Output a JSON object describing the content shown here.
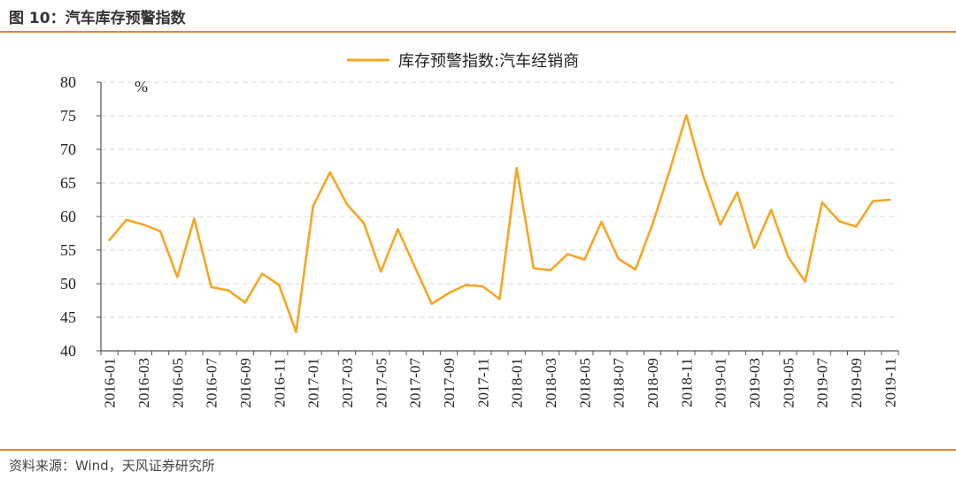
{
  "figure": {
    "title": "图 10：汽车库存预警指数",
    "source": "资料来源：Wind，天风证券研究所"
  },
  "colors": {
    "accent": "#e8822a",
    "line": "#f5a623",
    "grid": "#d9d9d9",
    "axis": "#555555"
  },
  "chart_data": {
    "type": "line",
    "unit_label": "%",
    "ylim": [
      40,
      80
    ],
    "yticks": [
      40,
      45,
      50,
      55,
      60,
      65,
      70,
      75,
      80
    ],
    "grid": true,
    "legend_position": "top-center",
    "x": [
      "2016-01",
      "2016-02",
      "2016-03",
      "2016-04",
      "2016-05",
      "2016-06",
      "2016-07",
      "2016-08",
      "2016-09",
      "2016-10",
      "2016-11",
      "2016-12",
      "2017-01",
      "2017-02",
      "2017-03",
      "2017-04",
      "2017-05",
      "2017-06",
      "2017-07",
      "2017-08",
      "2017-09",
      "2017-10",
      "2017-11",
      "2017-12",
      "2018-01",
      "2018-02",
      "2018-03",
      "2018-04",
      "2018-05",
      "2018-06",
      "2018-07",
      "2018-08",
      "2018-09",
      "2018-10",
      "2018-11",
      "2018-12",
      "2019-01",
      "2019-02",
      "2019-03",
      "2019-04",
      "2019-05",
      "2019-06",
      "2019-07",
      "2019-08",
      "2019-09",
      "2019-10",
      "2019-11"
    ],
    "xtick_labels": [
      "2016-01",
      "2016-03",
      "2016-05",
      "2016-07",
      "2016-09",
      "2016-11",
      "2017-01",
      "2017-03",
      "2017-05",
      "2017-07",
      "2017-09",
      "2017-11",
      "2018-01",
      "2018-03",
      "2018-05",
      "2018-07",
      "2018-09",
      "2018-11",
      "2019-01",
      "2019-03",
      "2019-05",
      "2019-07",
      "2019-09",
      "2019-11"
    ],
    "series": [
      {
        "name": "库存预警指数:汽车经销商",
        "values": [
          56.5,
          59.5,
          58.8,
          57.8,
          51.0,
          59.7,
          49.5,
          49.0,
          47.2,
          51.5,
          49.8,
          42.8,
          61.5,
          66.6,
          61.8,
          59.0,
          51.8,
          58.1,
          52.5,
          47.0,
          48.6,
          49.8,
          49.6,
          47.7,
          67.2,
          52.3,
          52.0,
          54.4,
          53.6,
          59.2,
          53.7,
          52.1,
          58.8,
          66.7,
          75.1,
          66.0,
          58.8,
          63.6,
          55.3,
          61.0,
          54.0,
          50.3,
          62.1,
          59.3,
          58.5,
          62.3,
          62.5
        ]
      }
    ]
  }
}
